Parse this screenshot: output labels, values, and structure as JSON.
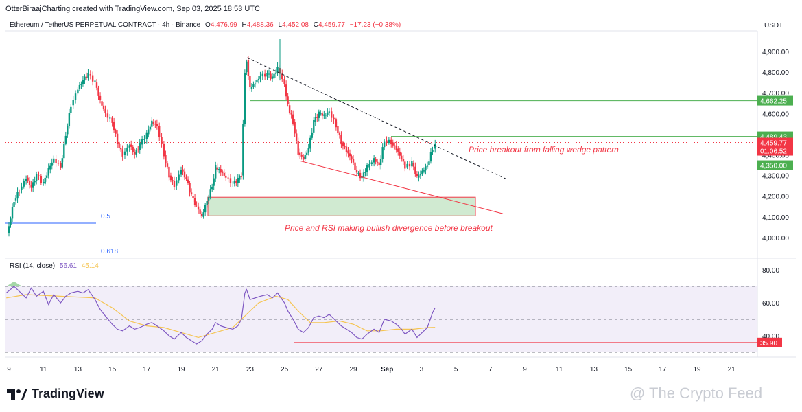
{
  "header": {
    "created_by": "OtterBiraajCharting created with TradingView.com, Sep 03, 2025 18:53 UTC",
    "symbol": "Ethereum / TetherUS PERPETUAL CONTRACT · 4h · Binance",
    "o_label": "O",
    "o_value": "4,476.99",
    "h_label": "H",
    "h_value": "4,488.36",
    "l_label": "L",
    "l_value": "4,452.08",
    "c_label": "C",
    "c_value": "4,459.77",
    "change": "−17.23 (−0.38%)",
    "currency": "USDT"
  },
  "footer": {
    "brand": "TradingView",
    "watermark": "@ The Crypto Feed"
  },
  "colors": {
    "up": "#089981",
    "down": "#f23645",
    "hline": "#4caf50",
    "rsi": "#7e57c2",
    "rsi_ma": "#f5c451"
  },
  "chart_data": [
    {
      "type": "candlestick",
      "title": "Ethereum / TetherUS PERPETUAL CONTRACT · 4h · Binance",
      "y_ticks": [
        "4,900.00",
        "4,800.00",
        "4,700.00",
        "4,600.00",
        "4,500.00",
        "4,400.00",
        "4,300.00",
        "4,200.00",
        "4,100.00",
        "4,000.00"
      ],
      "y_range": [
        3950,
        4980
      ],
      "x_ticks": [
        "9",
        "11",
        "13",
        "15",
        "17",
        "19",
        "21",
        "23",
        "25",
        "27",
        "29",
        "Sep",
        "3",
        "5",
        "7",
        "9",
        "11",
        "13",
        "15",
        "17",
        "19",
        "21"
      ],
      "price_path": [
        [
          8.85,
          4020
        ],
        [
          9.0,
          4060
        ],
        [
          9.3,
          4180
        ],
        [
          9.6,
          4230
        ],
        [
          10.0,
          4290
        ],
        [
          10.3,
          4240
        ],
        [
          10.6,
          4300
        ],
        [
          11.0,
          4260
        ],
        [
          11.3,
          4330
        ],
        [
          11.6,
          4380
        ],
        [
          12.0,
          4340
        ],
        [
          12.3,
          4500
        ],
        [
          12.6,
          4640
        ],
        [
          13.0,
          4720
        ],
        [
          13.3,
          4760
        ],
        [
          13.6,
          4790
        ],
        [
          14.0,
          4750
        ],
        [
          14.3,
          4660
        ],
        [
          14.6,
          4600
        ],
        [
          15.0,
          4560
        ],
        [
          15.3,
          4460
        ],
        [
          15.6,
          4400
        ],
        [
          16.0,
          4450
        ],
        [
          16.3,
          4400
        ],
        [
          16.6,
          4450
        ],
        [
          17.0,
          4500
        ],
        [
          17.3,
          4560
        ],
        [
          17.6,
          4540
        ],
        [
          18.0,
          4400
        ],
        [
          18.3,
          4300
        ],
        [
          18.6,
          4250
        ],
        [
          19.0,
          4330
        ],
        [
          19.3,
          4280
        ],
        [
          19.6,
          4200
        ],
        [
          19.9,
          4150
        ],
        [
          20.2,
          4100
        ],
        [
          20.5,
          4180
        ],
        [
          20.8,
          4250
        ],
        [
          21.0,
          4340
        ],
        [
          21.3,
          4320
        ],
        [
          21.6,
          4290
        ],
        [
          22.0,
          4260
        ],
        [
          22.3,
          4280
        ],
        [
          22.5,
          4300
        ],
        [
          22.6,
          4550
        ],
        [
          22.7,
          4800
        ],
        [
          22.8,
          4860
        ],
        [
          23.0,
          4720
        ],
        [
          23.3,
          4750
        ],
        [
          23.6,
          4780
        ],
        [
          24.0,
          4790
        ],
        [
          24.3,
          4770
        ],
        [
          24.6,
          4820
        ],
        [
          25.0,
          4740
        ],
        [
          25.2,
          4640
        ],
        [
          25.5,
          4560
        ],
        [
          25.8,
          4410
        ],
        [
          26.1,
          4380
        ],
        [
          26.4,
          4430
        ],
        [
          26.7,
          4560
        ],
        [
          27.0,
          4600
        ],
        [
          27.3,
          4590
        ],
        [
          27.6,
          4610
        ],
        [
          28.0,
          4540
        ],
        [
          28.3,
          4460
        ],
        [
          28.6,
          4420
        ],
        [
          28.9,
          4380
        ],
        [
          29.2,
          4310
        ],
        [
          29.5,
          4290
        ],
        [
          29.8,
          4340
        ],
        [
          30.2,
          4380
        ],
        [
          30.5,
          4350
        ],
        [
          30.8,
          4470
        ],
        [
          31.2,
          4460
        ],
        [
          31.5,
          4430
        ],
        [
          31.8,
          4380
        ],
        [
          32.0,
          4340
        ],
        [
          32.4,
          4360
        ],
        [
          32.7,
          4290
        ],
        [
          33.0,
          4320
        ],
        [
          33.3,
          4350
        ],
        [
          33.6,
          4430
        ],
        [
          33.75,
          4460
        ]
      ],
      "levels": [
        "4,662.25",
        "4,489.43",
        "4,350.00"
      ],
      "level_values": [
        4662.25,
        4489.43,
        4350
      ],
      "current_price": "4,459.77",
      "current_value": 4459.77,
      "countdown": "01:06:52",
      "fib_labels": [
        "0.5",
        "0.618"
      ],
      "annotations": [
        "Price breakout from falling wedge pattern",
        "Price and RSI making bullish divergence before breakout"
      ],
      "demand_zone": [
        4105,
        4195
      ]
    },
    {
      "type": "line",
      "title": "RSI (14, close)",
      "series": [
        {
          "name": "RSI",
          "value_label": "56.61",
          "values": [
            [
              8.85,
              66
            ],
            [
              9.3,
              70
            ],
            [
              9.6,
              67
            ],
            [
              10.0,
              63
            ],
            [
              10.3,
              69
            ],
            [
              10.6,
              64
            ],
            [
              11.0,
              67
            ],
            [
              11.3,
              59
            ],
            [
              11.6,
              65
            ],
            [
              12.0,
              60
            ],
            [
              12.3,
              64
            ],
            [
              12.6,
              66
            ],
            [
              13.0,
              67
            ],
            [
              13.3,
              66
            ],
            [
              13.6,
              68
            ],
            [
              14.0,
              62
            ],
            [
              14.3,
              56
            ],
            [
              14.6,
              52
            ],
            [
              15.0,
              47
            ],
            [
              15.3,
              44
            ],
            [
              15.6,
              43
            ],
            [
              16.0,
              46
            ],
            [
              16.3,
              44
            ],
            [
              16.6,
              45
            ],
            [
              17.0,
              47
            ],
            [
              17.3,
              48
            ],
            [
              17.6,
              46
            ],
            [
              18.0,
              43
            ],
            [
              18.3,
              40
            ],
            [
              18.6,
              38
            ],
            [
              19.0,
              42
            ],
            [
              19.3,
              39
            ],
            [
              19.6,
              37
            ],
            [
              19.9,
              35
            ],
            [
              20.2,
              37
            ],
            [
              20.5,
              41
            ],
            [
              20.8,
              44
            ],
            [
              21.0,
              48
            ],
            [
              21.3,
              46
            ],
            [
              21.6,
              45
            ],
            [
              22.0,
              44
            ],
            [
              22.3,
              46
            ],
            [
              22.5,
              50
            ],
            [
              22.6,
              58
            ],
            [
              22.7,
              66
            ],
            [
              22.8,
              68
            ],
            [
              23.0,
              62
            ],
            [
              23.3,
              63
            ],
            [
              23.6,
              64
            ],
            [
              24.0,
              65
            ],
            [
              24.3,
              63
            ],
            [
              24.6,
              66
            ],
            [
              25.0,
              60
            ],
            [
              25.2,
              55
            ],
            [
              25.5,
              50
            ],
            [
              25.8,
              44
            ],
            [
              26.1,
              42
            ],
            [
              26.4,
              45
            ],
            [
              26.7,
              51
            ],
            [
              27.0,
              52
            ],
            [
              27.3,
              51
            ],
            [
              27.6,
              53
            ],
            [
              28.0,
              49
            ],
            [
              28.3,
              46
            ],
            [
              28.6,
              44
            ],
            [
              28.9,
              42
            ],
            [
              29.2,
              39
            ],
            [
              29.5,
              38
            ],
            [
              29.8,
              41
            ],
            [
              30.2,
              44
            ],
            [
              30.5,
              42
            ],
            [
              30.8,
              50
            ],
            [
              31.2,
              49
            ],
            [
              31.5,
              47
            ],
            [
              31.8,
              44
            ],
            [
              32.0,
              41
            ],
            [
              32.4,
              44
            ],
            [
              32.7,
              39
            ],
            [
              33.0,
              42
            ],
            [
              33.3,
              45
            ],
            [
              33.6,
              54
            ],
            [
              33.75,
              57
            ]
          ]
        },
        {
          "name": "RSI-based MA",
          "value_label": "45.14",
          "values": [
            [
              8.85,
              63
            ],
            [
              10.0,
              65
            ],
            [
              12.0,
              64
            ],
            [
              14.0,
              63
            ],
            [
              15.0,
              57
            ],
            [
              16.0,
              49
            ],
            [
              17.0,
              46
            ],
            [
              18.0,
              45
            ],
            [
              19.0,
              42
            ],
            [
              20.0,
              39
            ],
            [
              21.0,
              42
            ],
            [
              22.0,
              45
            ],
            [
              22.8,
              53
            ],
            [
              23.5,
              60
            ],
            [
              24.5,
              64
            ],
            [
              25.2,
              62
            ],
            [
              25.8,
              55
            ],
            [
              26.5,
              48
            ],
            [
              27.3,
              48
            ],
            [
              28.2,
              49
            ],
            [
              29.0,
              47
            ],
            [
              29.8,
              43
            ],
            [
              30.6,
              43
            ],
            [
              31.5,
              44
            ],
            [
              32.5,
              44
            ],
            [
              33.3,
              45
            ],
            [
              33.75,
              45.14
            ]
          ]
        }
      ],
      "y_ticks": [
        "80.00",
        "60.00",
        "40.00"
      ],
      "y_range": [
        28,
        88
      ],
      "bands": [
        70,
        50,
        30
      ],
      "support_label": "35.90",
      "support_value": 35.9
    }
  ]
}
